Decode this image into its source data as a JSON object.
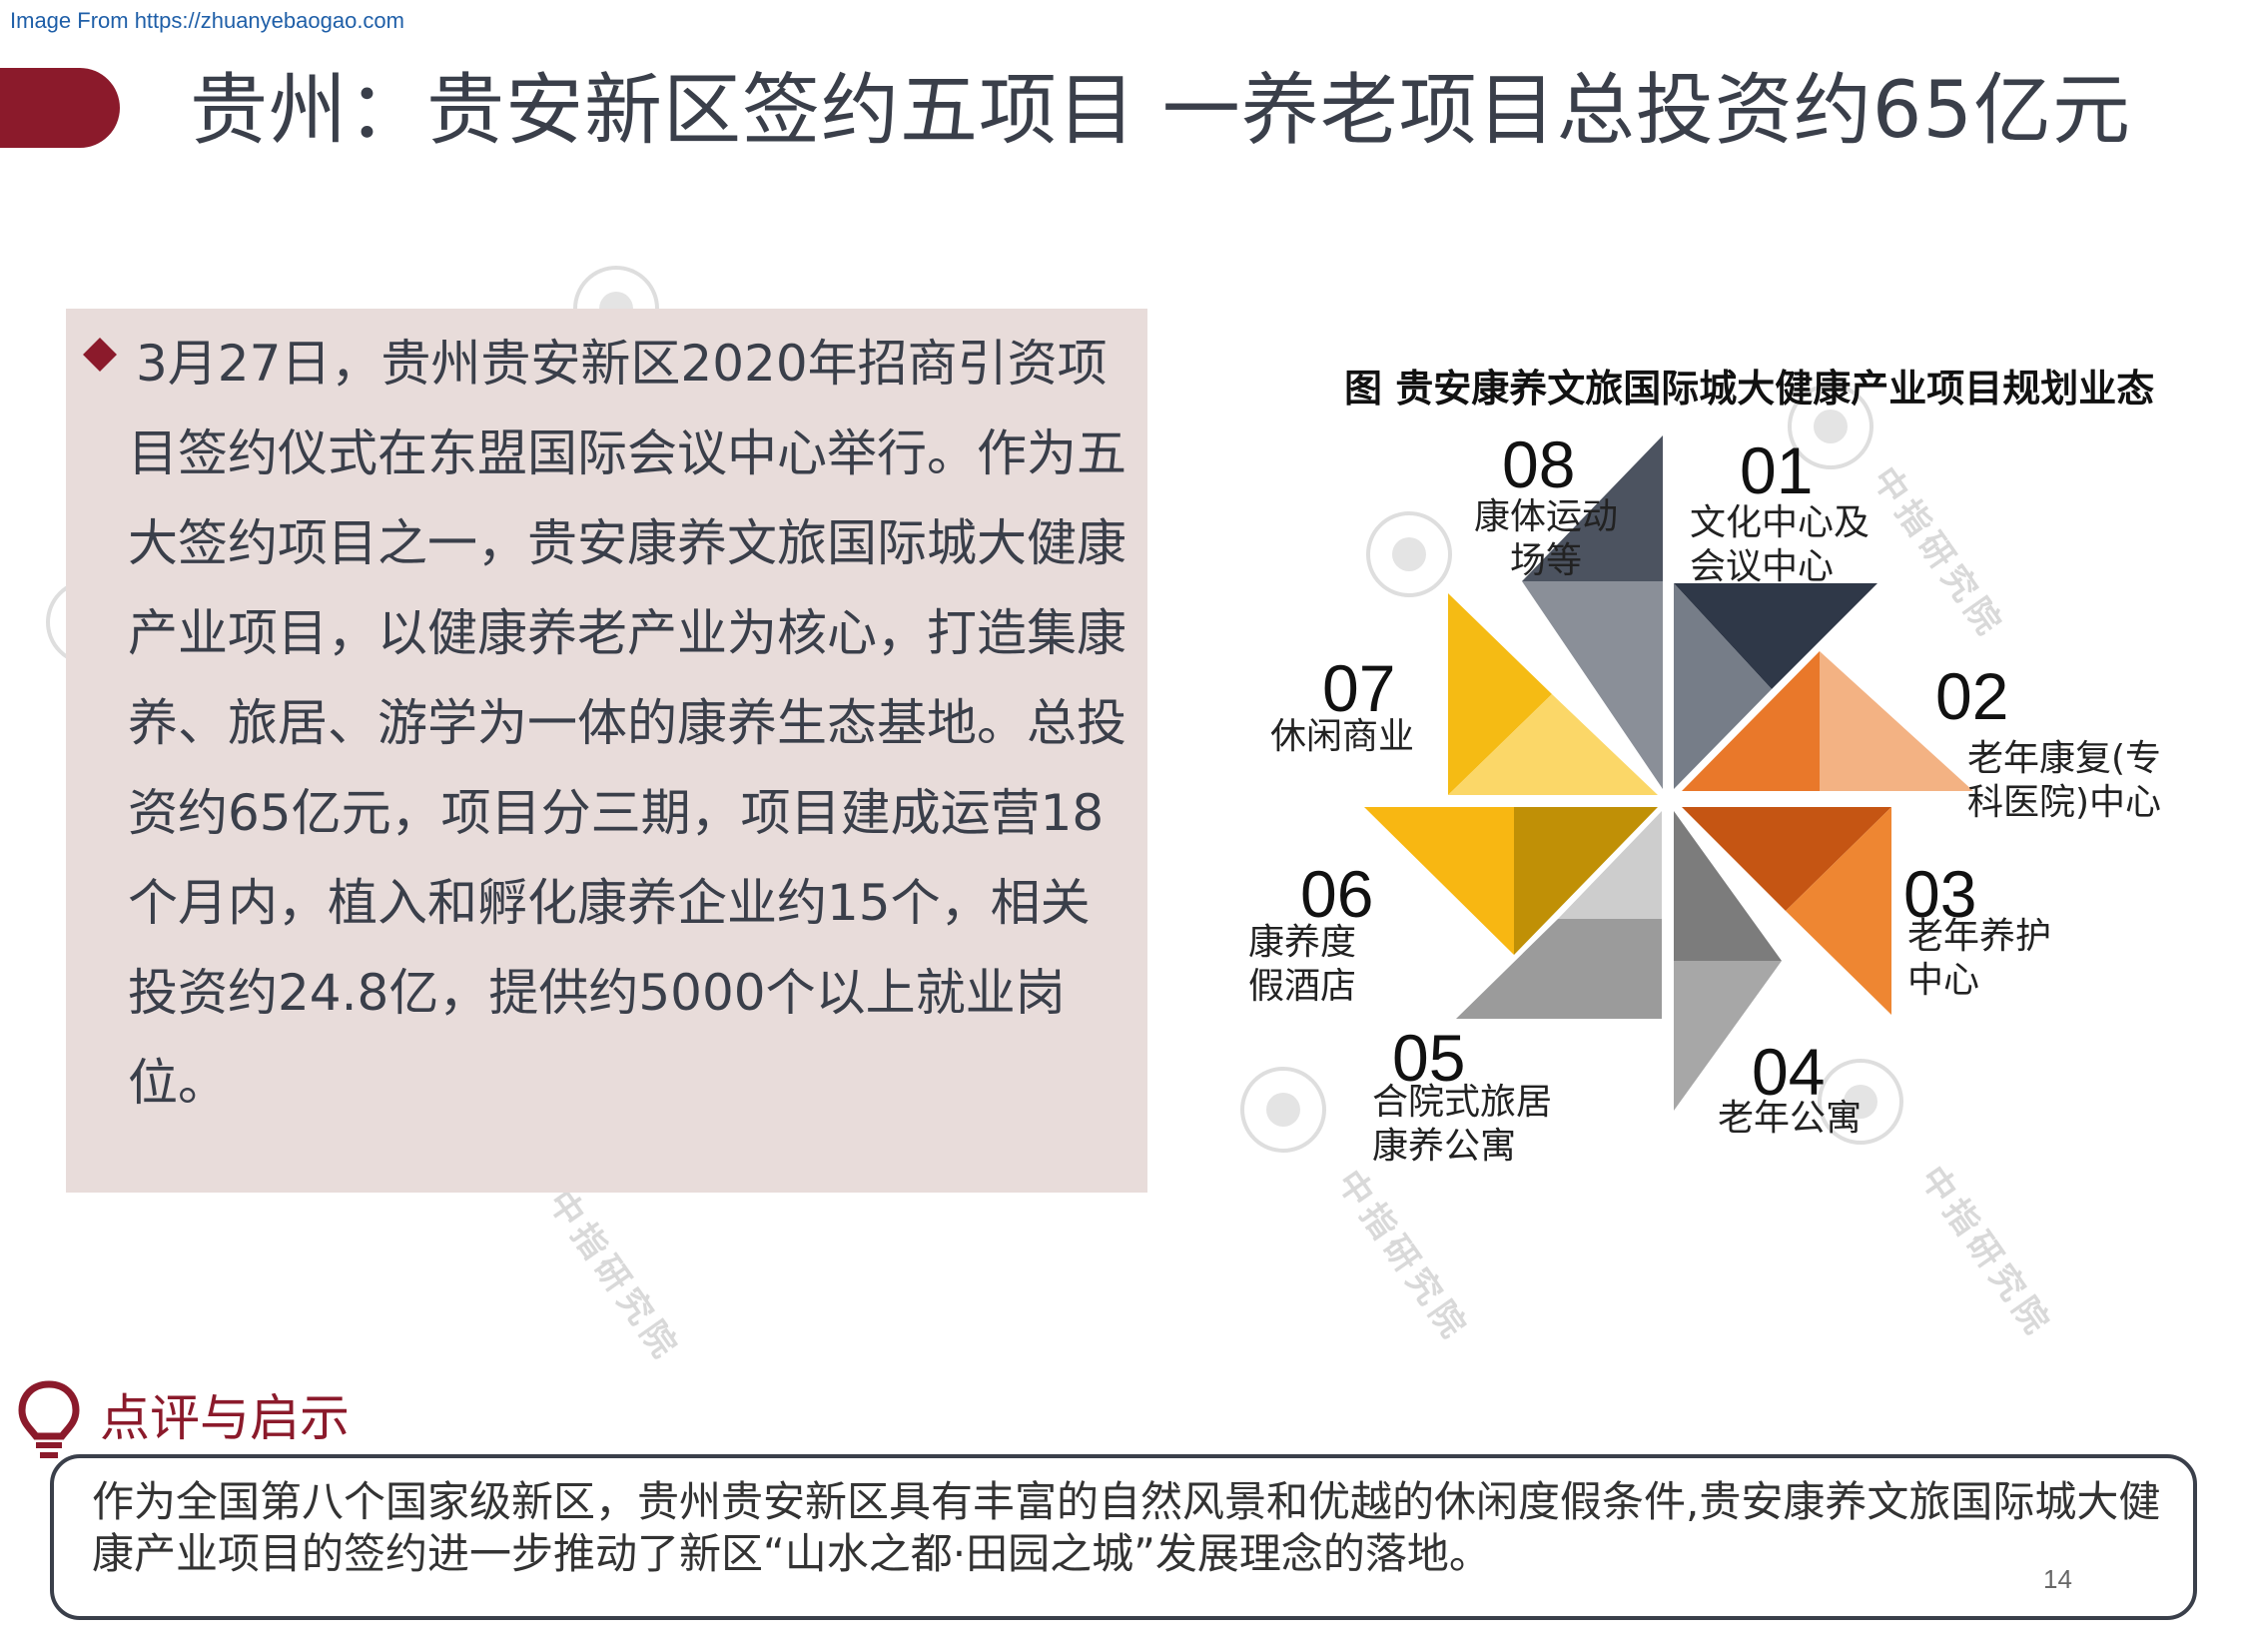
{
  "source": "Image From https://zhuanyebaogao.com",
  "title": "贵州：贵安新区签约五项目 一养老项目总投资约65亿元",
  "main_text": "3月27日，贵州贵安新区2020年招商引资项目签约仪式在东盟国际会议中心举行。作为五大签约项目之一，贵安康养文旅国际城大健康产业项目，以健康养老产业为核心，打造集康养、旅居、游学为一体的康养生态基地。总投资约65亿元，项目分三期，项目建成运营18个月内，植入和孵化康养企业约15个，相关投资约24.8亿，提供约5000个以上就业岗位。",
  "diagram": {
    "title": "图 贵安康养文旅国际城大健康产业项目规划业态",
    "petals": [
      {
        "num": "01",
        "label": "文化中心及会议中心"
      },
      {
        "num": "02",
        "label": "老年康复(专科医院)中心"
      },
      {
        "num": "03",
        "label": "老年养护中心"
      },
      {
        "num": "04",
        "label": "老年公寓"
      },
      {
        "num": "05",
        "label": "合院式旅居康养公寓"
      },
      {
        "num": "06",
        "label": "康养度假酒店"
      },
      {
        "num": "07",
        "label": "休闲商业"
      },
      {
        "num": "08",
        "label": "康体运动场等"
      }
    ]
  },
  "comment": {
    "heading": "点评与启示",
    "text": "作为全国第八个国家级新区，贵州贵安新区具有丰富的自然风景和优越的休闲度假条件,贵安康养文旅国际城大健康产业项目的签约进一步推动了新区“山水之都·田园之城”发展理念的落地。"
  },
  "page_number": "14",
  "watermark": "中指研究院",
  "colors": {
    "accent": "#8b1a2b",
    "box_bg": "#e8dcda",
    "title": "#3a3f4a"
  }
}
